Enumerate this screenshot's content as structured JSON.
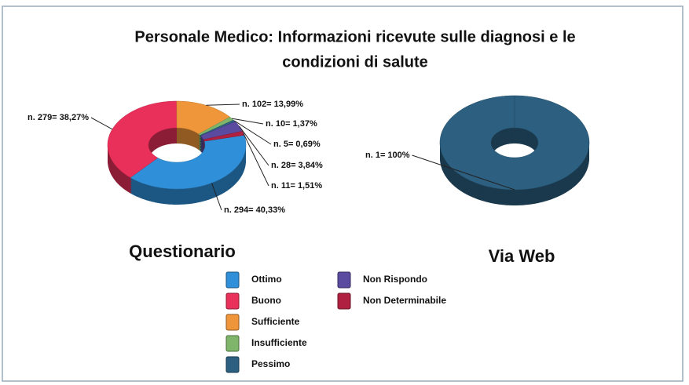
{
  "title_lines": [
    "Personale Medico: Informazioni ricevute sulle diagnosi e le",
    "condizioni di salute"
  ],
  "chart_data": [
    {
      "type": "pie",
      "donut": true,
      "title": "Questionario",
      "categories": [
        "Ottimo",
        "Buono",
        "Sufficiente",
        "Insufficiente",
        "Pessimo",
        "Non Rispondo",
        "Non Determinabile"
      ],
      "values": [
        40.33,
        38.27,
        13.99,
        1.37,
        0.69,
        3.84,
        1.51
      ],
      "value_labels": [
        "n. 294= 40,33%",
        "n. 279= 38,27%",
        "n. 102= 13,99%",
        "n. 10= 1,37%",
        "n. 5= 0,69%",
        "n. 28= 3,84%",
        "n. 11= 1,51%"
      ],
      "colors": [
        "#2f8fd8",
        "#e8305a",
        "#f0963a",
        "#7fb56a",
        "#2c5f80",
        "#5a4aa0",
        "#b02040"
      ]
    },
    {
      "type": "pie",
      "donut": true,
      "title": "Via Web",
      "values": [
        100
      ],
      "value_labels": [
        "n. 1= 100%"
      ],
      "colors": [
        "#2c5f80"
      ]
    }
  ]
}
